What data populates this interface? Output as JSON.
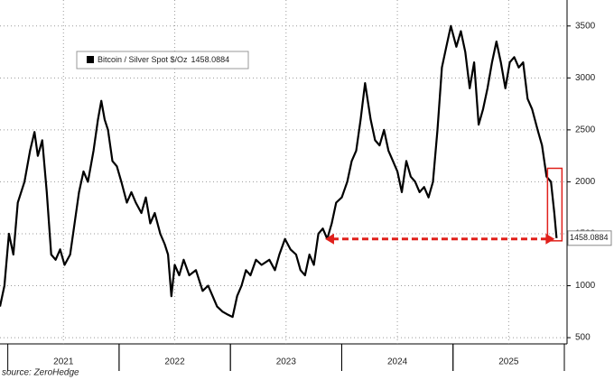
{
  "chart_data": {
    "type": "line",
    "x": [
      2020.93,
      2020.97,
      2021.01,
      2021.05,
      2021.09,
      2021.15,
      2021.2,
      2021.24,
      2021.27,
      2021.31,
      2021.35,
      2021.39,
      2021.43,
      2021.47,
      2021.51,
      2021.56,
      2021.6,
      2021.64,
      2021.68,
      2021.72,
      2021.77,
      2021.81,
      2021.84,
      2021.87,
      2021.9,
      2021.94,
      2021.98,
      2022.02,
      2022.07,
      2022.11,
      2022.15,
      2022.2,
      2022.24,
      2022.28,
      2022.32,
      2022.37,
      2022.41,
      2022.44,
      2022.47,
      2022.5,
      2022.54,
      2022.58,
      2022.63,
      2022.69,
      2022.75,
      2022.8,
      2022.84,
      2022.88,
      2022.93,
      2022.98,
      2023.02,
      2023.06,
      2023.1,
      2023.14,
      2023.18,
      2023.23,
      2023.28,
      2023.35,
      2023.4,
      2023.44,
      2023.49,
      2023.54,
      2023.59,
      2023.63,
      2023.67,
      2023.71,
      2023.75,
      2023.79,
      2023.83,
      2023.87,
      2023.91,
      2023.95,
      2024.0,
      2024.05,
      2024.09,
      2024.13,
      2024.17,
      2024.21,
      2024.26,
      2024.3,
      2024.34,
      2024.38,
      2024.42,
      2024.46,
      2024.5,
      2024.54,
      2024.58,
      2024.62,
      2024.66,
      2024.7,
      2024.74,
      2024.78,
      2024.82,
      2024.86,
      2024.9,
      2024.94,
      2024.98,
      2025.03,
      2025.07,
      2025.11,
      2025.15,
      2025.19,
      2025.23,
      2025.27,
      2025.31,
      2025.35,
      2025.39,
      2025.43,
      2025.47,
      2025.51,
      2025.55,
      2025.59,
      2025.63,
      2025.67,
      2025.71,
      2025.76,
      2025.8,
      2025.84,
      2025.88,
      2025.91,
      2025.93
    ],
    "series": [
      {
        "name": "Bitcoin / Silver Spot $/Oz",
        "color": "#000000",
        "values": [
          800,
          1000,
          1500,
          1300,
          1800,
          2000,
          2300,
          2480,
          2250,
          2400,
          1900,
          1300,
          1250,
          1350,
          1200,
          1300,
          1600,
          1900,
          2100,
          2000,
          2300,
          2600,
          2780,
          2600,
          2500,
          2200,
          2150,
          2000,
          1800,
          1900,
          1800,
          1700,
          1850,
          1600,
          1700,
          1500,
          1400,
          1300,
          900,
          1200,
          1100,
          1250,
          1100,
          1150,
          950,
          1000,
          900,
          800,
          750,
          720,
          700,
          900,
          1000,
          1150,
          1100,
          1250,
          1200,
          1250,
          1150,
          1300,
          1450,
          1350,
          1300,
          1150,
          1100,
          1300,
          1200,
          1500,
          1550,
          1450,
          1600,
          1800,
          1850,
          2000,
          2200,
          2300,
          2600,
          2950,
          2600,
          2400,
          2350,
          2500,
          2300,
          2200,
          2100,
          1900,
          2200,
          2050,
          2000,
          1900,
          1950,
          1850,
          2000,
          2500,
          3100,
          3300,
          3500,
          3300,
          3450,
          3250,
          2900,
          3150,
          2550,
          2700,
          2900,
          3150,
          3350,
          3150,
          2900,
          3150,
          3200,
          3100,
          3150,
          2800,
          2700,
          2500,
          2350,
          2050,
          2000,
          1700,
          1458.0884
        ]
      }
    ],
    "xlim": [
      2020.93,
      2026.0
    ],
    "xticks": [
      {
        "value": 2021.5,
        "label": "2021"
      },
      {
        "value": 2022.5,
        "label": "2022"
      },
      {
        "value": 2023.5,
        "label": "2023"
      },
      {
        "value": 2024.5,
        "label": "2024"
      },
      {
        "value": 2025.5,
        "label": "2025"
      }
    ],
    "ylim": [
      440,
      3750
    ],
    "yticks": [
      500,
      1000,
      1500,
      2000,
      2500,
      3000,
      3500
    ],
    "grid": true,
    "source": "source: ZeroHedge"
  }
}
